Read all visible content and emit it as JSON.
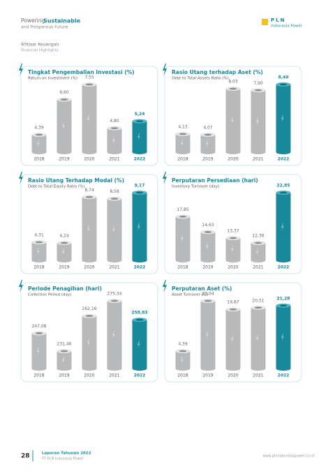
{
  "header": {
    "tagline_prefix": "Powering",
    "tagline_bold": "Sustainable",
    "tagline_line2": "and Prosperous Future",
    "logo_title": "PLN",
    "logo_subtitle": "Indonesia Power"
  },
  "section": {
    "title": "Ikhtisar Keuangan",
    "subtitle": "Financial Highlights"
  },
  "chart_data": [
    {
      "type": "bar",
      "title": "Tingkat Pengembalian Investasi (%)",
      "subtitle": "Return on Investment (%)",
      "categories": [
        "2018",
        "2019",
        "2020",
        "2021",
        "2022"
      ],
      "values": [
        4.39,
        6.6,
        7.55,
        4.8,
        5.24
      ],
      "value_labels": [
        "4,39",
        "6,60",
        "7,55",
        "4,80",
        "5,24"
      ],
      "color": "#b8b9bb",
      "highlight_color": "#17899b"
    },
    {
      "type": "bar",
      "title": "Rasio Utang terhadap Aset (%)",
      "subtitle": "Debt to Total Assets Ratio (%)",
      "categories": [
        "2018",
        "2019",
        "2020",
        "2021",
        "2022"
      ],
      "values": [
        4.13,
        4.07,
        8.03,
        7.9,
        8.4
      ],
      "value_labels": [
        "4,13",
        "4,07",
        "8,03",
        "7,90",
        "8,40"
      ],
      "color": "#b8b9bb",
      "highlight_color": "#17899b"
    },
    {
      "type": "bar",
      "title": "Rasio Utang Terhadap Modal (%)",
      "subtitle": "Debt to Total Equity Ratio (%)",
      "categories": [
        "2018",
        "2019",
        "2020",
        "2021",
        "2022"
      ],
      "values": [
        4.31,
        4.24,
        8.74,
        8.58,
        9.17
      ],
      "value_labels": [
        "4,31",
        "4,24",
        "8,74",
        "8,58",
        "9,17"
      ],
      "color": "#b8b9bb",
      "highlight_color": "#17899b"
    },
    {
      "type": "bar",
      "title": "Perputaran Persediaan (hari)",
      "subtitle": "Inventory Turnover (day)",
      "categories": [
        "2018",
        "2019",
        "2020",
        "2021",
        "2022"
      ],
      "values": [
        17.85,
        14.63,
        13.37,
        12.36,
        22.85
      ],
      "value_labels": [
        "17,85",
        "14,63",
        "13,37",
        "12,36",
        "22,85"
      ],
      "color": "#b8b9bb",
      "highlight_color": "#17899b"
    },
    {
      "type": "bar",
      "title": "Periode Penagihan (hari)",
      "subtitle": "Collection Period (day)",
      "categories": [
        "2018",
        "2019",
        "2020",
        "2021",
        "2022"
      ],
      "values": [
        247.08,
        231.46,
        262.16,
        275.34,
        258.83
      ],
      "value_labels": [
        "247,08",
        "231,46",
        "262,16",
        "275,34",
        "258,83"
      ],
      "color": "#b8b9bb",
      "highlight_color": "#17899b"
    },
    {
      "type": "bar",
      "title": "Perputaran Aset (%)",
      "subtitle": "Asset Turnover (%)",
      "categories": [
        "2018",
        "2019",
        "2020",
        "2021",
        "2022"
      ],
      "values": [
        4.39,
        23.04,
        19.87,
        20.51,
        21.28
      ],
      "value_labels": [
        "4,39",
        "23,04",
        "19,87",
        "20,51",
        "21,28"
      ],
      "color": "#b8b9bb",
      "highlight_color": "#17899b"
    }
  ],
  "footer": {
    "page": "28",
    "title": "Laporan Tahunan 2022",
    "subtitle": "PT PLN Indonesia Power",
    "url": "www.plnindonesiapower.co.id"
  }
}
